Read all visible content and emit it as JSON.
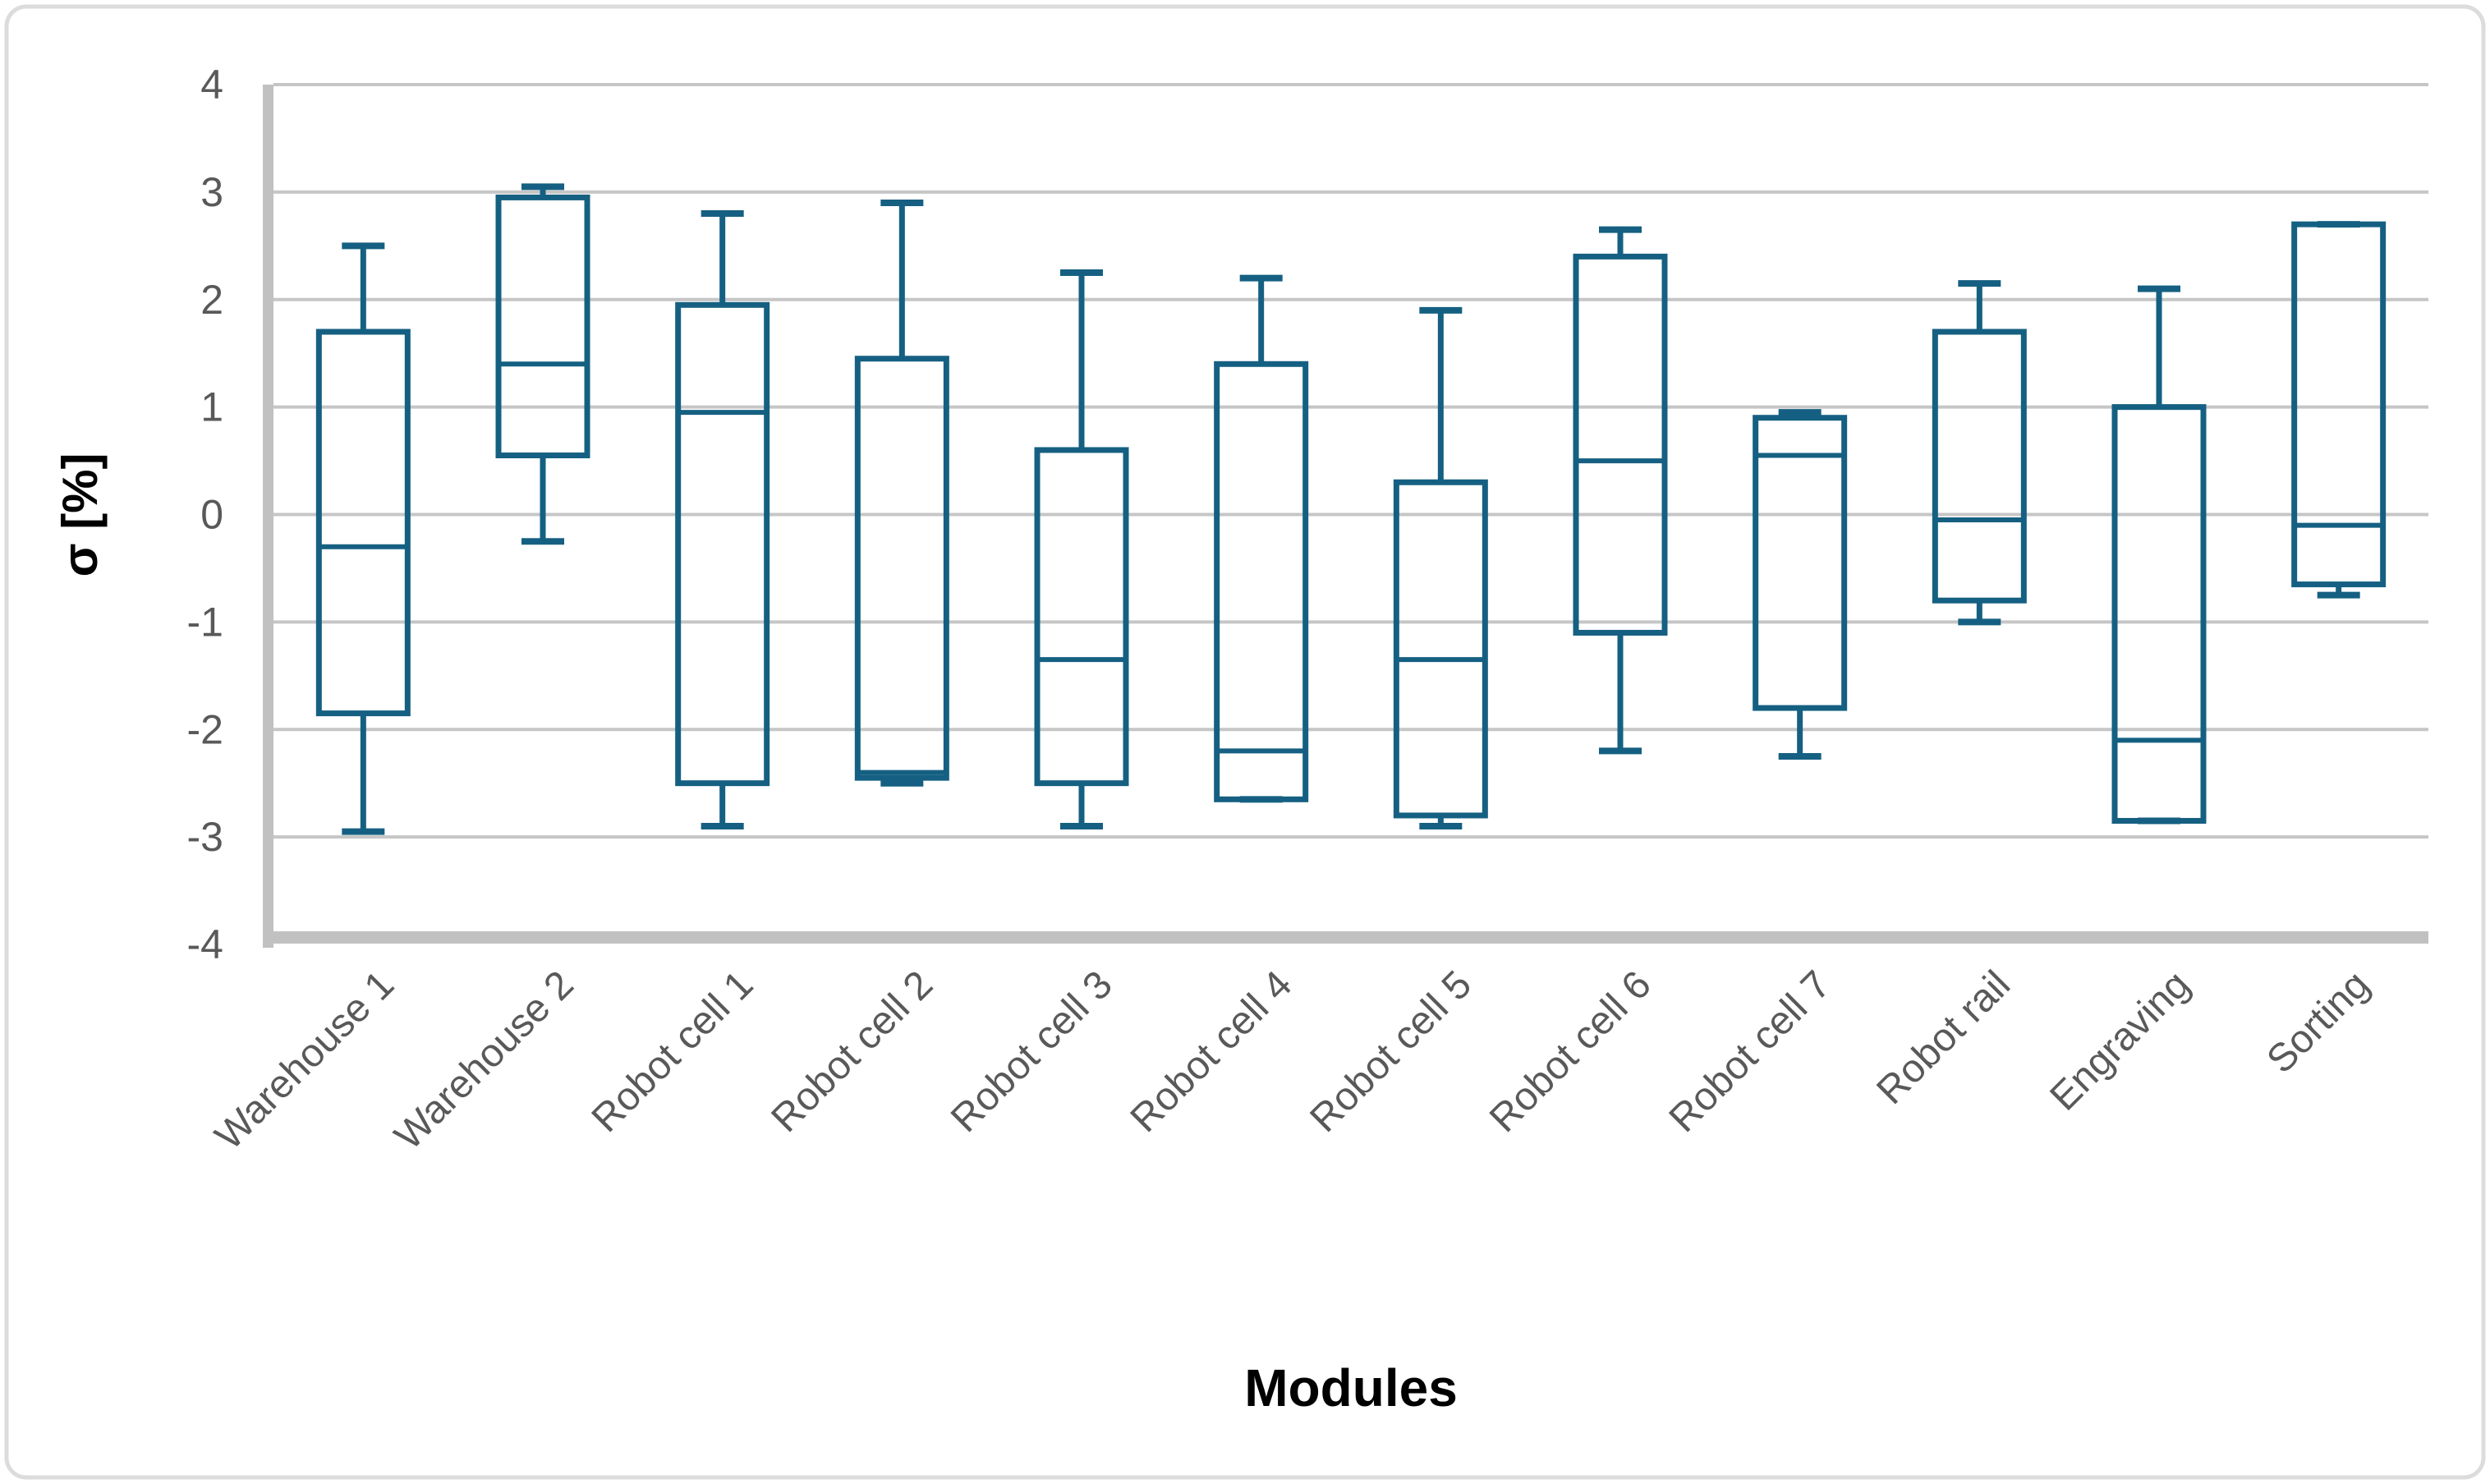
{
  "figure": {
    "background_color": "#ffffff",
    "border_color": "#dcdcdc"
  },
  "chart_data": {
    "type": "boxplot",
    "title": "",
    "xlabel": "Modules",
    "ylabel": "σ [%]",
    "ylim": [
      -4,
      4
    ],
    "ytick_interval": 1,
    "y_tick_labels": [
      "4",
      "3",
      "2",
      "1",
      "0",
      "-1",
      "-2",
      "-3",
      "-4"
    ],
    "grid": true,
    "legend": "none",
    "box_color": "#156082",
    "gridline_color": "#c6c6c6",
    "axis_line_color": "#c1c1c1",
    "tick_label_color": "#595959",
    "axis_title_color": "#000000",
    "categories": [
      "Warehouse 1",
      "Warehouse 2",
      "Robot cell 1",
      "Robot cell 2",
      "Robot cell 3",
      "Robot cell 4",
      "Robot cell 5",
      "Robot cell 6",
      "Robot cell 7",
      "Robot rail",
      "Engraving",
      "Sorting"
    ],
    "series": [
      {
        "name": "Warehouse 1",
        "whisker_low": -2.95,
        "q1": -1.85,
        "median": -0.3,
        "q3": 1.7,
        "whisker_high": 2.5
      },
      {
        "name": "Warehouse 2",
        "whisker_low": -0.25,
        "q1": 0.55,
        "median": 1.4,
        "q3": 2.95,
        "whisker_high": 3.05
      },
      {
        "name": "Robot cell 1",
        "whisker_low": -2.9,
        "q1": -2.5,
        "median": 0.95,
        "q3": 1.95,
        "whisker_high": 2.8
      },
      {
        "name": "Robot cell 2",
        "whisker_low": -2.5,
        "q1": -2.45,
        "median": -2.4,
        "q3": 1.45,
        "whisker_high": 2.9
      },
      {
        "name": "Robot cell 3",
        "whisker_low": -2.9,
        "q1": -2.5,
        "median": -1.35,
        "q3": 0.6,
        "whisker_high": 2.25
      },
      {
        "name": "Robot cell 4",
        "whisker_low": -2.65,
        "q1": -2.65,
        "median": -2.2,
        "q3": 1.4,
        "whisker_high": 2.2
      },
      {
        "name": "Robot cell 5",
        "whisker_low": -2.9,
        "q1": -2.8,
        "median": -1.35,
        "q3": 0.3,
        "whisker_high": 1.9
      },
      {
        "name": "Robot cell 6",
        "whisker_low": -2.2,
        "q1": -1.1,
        "median": 0.5,
        "q3": 2.4,
        "whisker_high": 2.65
      },
      {
        "name": "Robot cell 7",
        "whisker_low": -2.25,
        "q1": -1.8,
        "median": 0.55,
        "q3": 0.9,
        "whisker_high": 0.95
      },
      {
        "name": "Robot rail",
        "whisker_low": -1.0,
        "q1": -0.8,
        "median": -0.05,
        "q3": 1.7,
        "whisker_high": 2.15
      },
      {
        "name": "Engraving",
        "whisker_low": -2.85,
        "q1": -2.85,
        "median": -2.1,
        "q3": 1.0,
        "whisker_high": 2.1
      },
      {
        "name": "Sorting",
        "whisker_low": -0.75,
        "q1": -0.65,
        "median": -0.1,
        "q3": 2.7,
        "whisker_high": 2.7
      }
    ]
  }
}
